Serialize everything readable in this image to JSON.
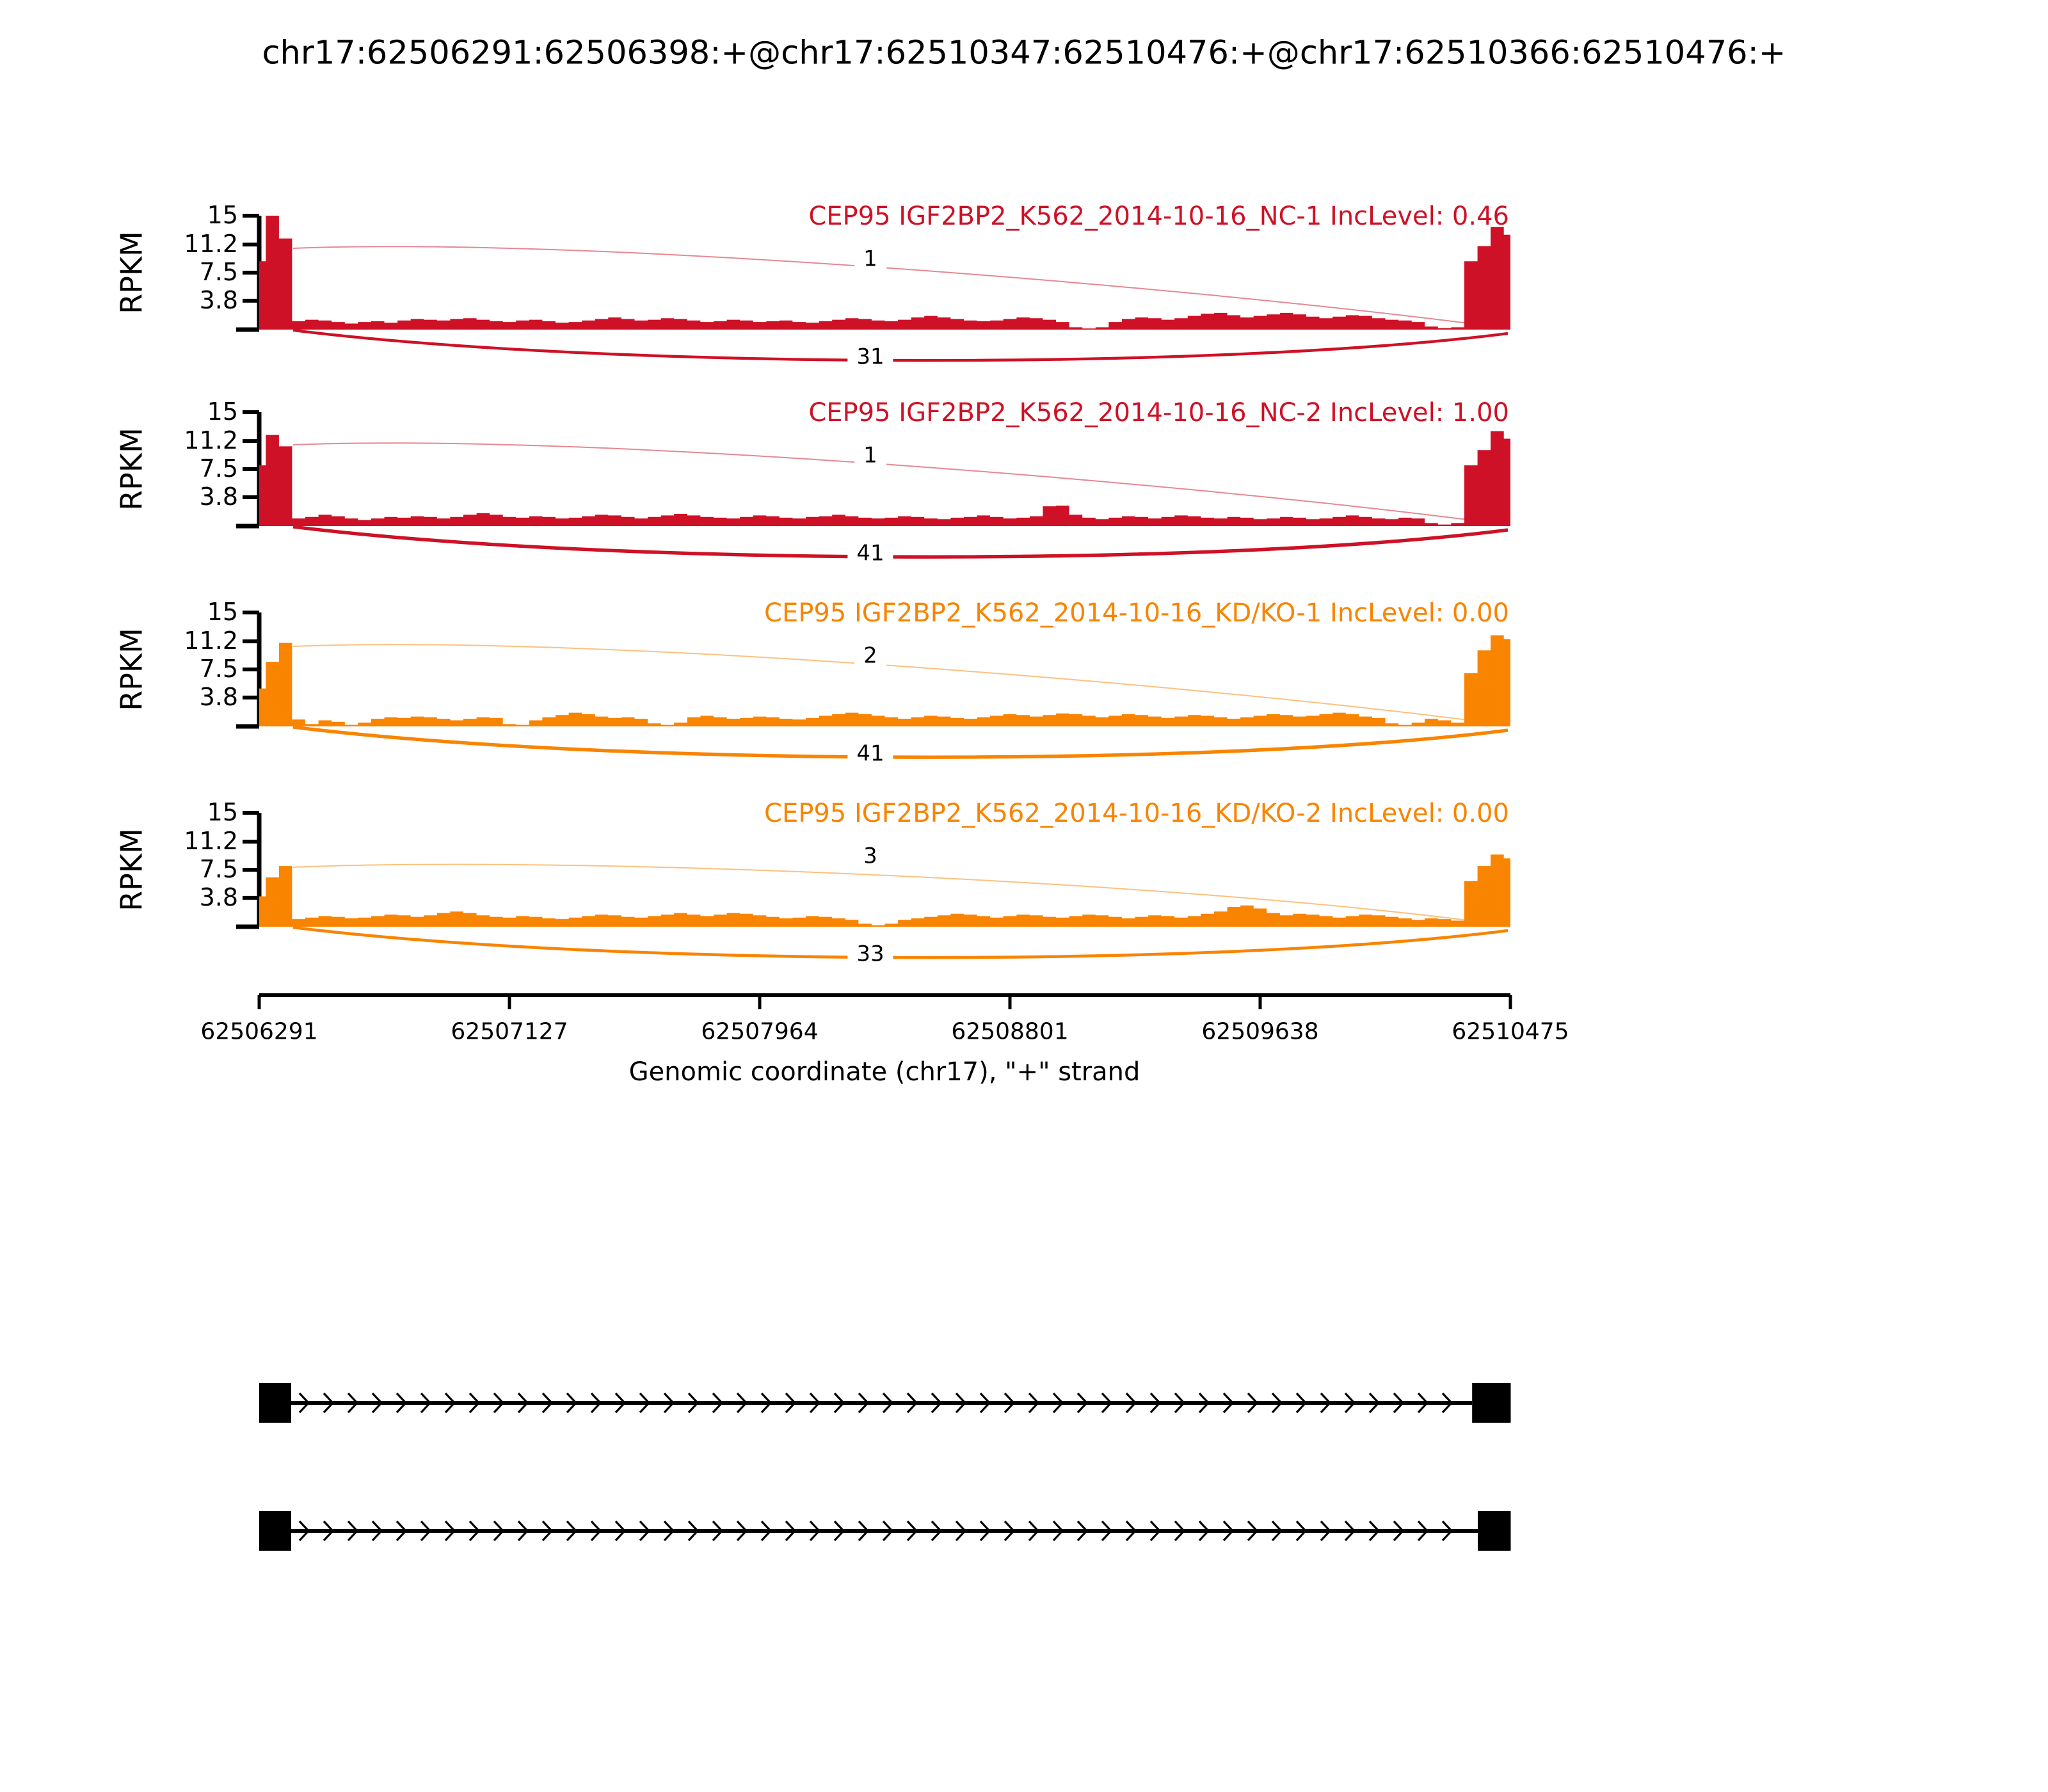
{
  "title": "chr17:62506291:62506398:+@chr17:62510347:62510476:+@chr17:62510366:62510476:+",
  "colors": {
    "red": "#CE1126",
    "orange": "#F98400",
    "axis_black": "#000000"
  },
  "axis": {
    "y_label": "RPKM",
    "y_ticks": [
      "15",
      "11.2",
      "7.5",
      "3.8"
    ],
    "x_label": "Genomic coordinate (chr17), \"+\" strand",
    "x_ticks": [
      "62506291",
      "62507127",
      "62507964",
      "62508801",
      "62509638",
      "62510475"
    ]
  },
  "chart_data": {
    "type": "area",
    "subtype": "sashimi-plot",
    "x_range": [
      62506291,
      62510475
    ],
    "y_max_rpkm": 15,
    "y_tick_values": [
      15,
      11.2,
      7.5,
      3.8
    ],
    "tracks": [
      {
        "label": "CEP95 IGF2BP2_K562_2014-10-16_NC-1 IncLevel: 0.46",
        "sample": "NC-1",
        "inc_level": 0.46,
        "color": "#CE1126",
        "junction_counts": {
          "upper_arc": 1,
          "lower_arc": 31
        },
        "coverage_rpkm": [
          9,
          15,
          12,
          1.1,
          1.3,
          1.2,
          1.0,
          0.8,
          1.0,
          1.1,
          0.9,
          1.2,
          1.4,
          1.3,
          1.2,
          1.4,
          1.5,
          1.3,
          1.1,
          1.0,
          1.2,
          1.3,
          1.1,
          0.9,
          1.0,
          1.2,
          1.4,
          1.6,
          1.4,
          1.2,
          1.3,
          1.5,
          1.4,
          1.2,
          1.0,
          1.1,
          1.3,
          1.2,
          1.0,
          1.1,
          1.2,
          1.0,
          0.9,
          1.1,
          1.3,
          1.5,
          1.4,
          1.2,
          1.1,
          1.3,
          1.6,
          1.8,
          1.6,
          1.4,
          1.2,
          1.1,
          1.2,
          1.4,
          1.6,
          1.5,
          1.3,
          1.0,
          0.3,
          0.15,
          0.3,
          1.0,
          1.4,
          1.6,
          1.5,
          1.3,
          1.5,
          1.8,
          2.1,
          2.2,
          1.9,
          1.6,
          1.8,
          2.0,
          2.2,
          2.0,
          1.7,
          1.5,
          1.7,
          1.9,
          1.8,
          1.5,
          1.3,
          1.2,
          1.0,
          0.4,
          0.2,
          0.3,
          9,
          11,
          13.5,
          12.5
        ]
      },
      {
        "label": "CEP95 IGF2BP2_K562_2014-10-16_NC-2 IncLevel: 1.00",
        "sample": "NC-2",
        "inc_level": 1.0,
        "color": "#CE1126",
        "junction_counts": {
          "upper_arc": 1,
          "lower_arc": 41
        },
        "coverage_rpkm": [
          8,
          12,
          10.5,
          1.0,
          1.2,
          1.5,
          1.3,
          1.0,
          0.8,
          1.0,
          1.2,
          1.1,
          1.3,
          1.2,
          1.0,
          1.2,
          1.5,
          1.7,
          1.5,
          1.2,
          1.1,
          1.3,
          1.2,
          1.0,
          1.1,
          1.3,
          1.5,
          1.4,
          1.2,
          1.0,
          1.2,
          1.4,
          1.6,
          1.4,
          1.2,
          1.1,
          1.0,
          1.2,
          1.4,
          1.3,
          1.1,
          1.0,
          1.2,
          1.3,
          1.5,
          1.3,
          1.1,
          1.0,
          1.1,
          1.3,
          1.2,
          1.0,
          0.9,
          1.1,
          1.2,
          1.4,
          1.2,
          1.0,
          1.1,
          1.3,
          2.6,
          2.7,
          1.5,
          1.1,
          0.9,
          1.1,
          1.3,
          1.2,
          1.0,
          1.2,
          1.4,
          1.3,
          1.1,
          1.0,
          1.2,
          1.1,
          0.9,
          1.0,
          1.2,
          1.1,
          0.9,
          1.0,
          1.2,
          1.4,
          1.2,
          1.0,
          0.9,
          1.1,
          1.0,
          0.4,
          0.2,
          0.4,
          8,
          10,
          12.5,
          11.5
        ]
      },
      {
        "label": "CEP95 IGF2BP2_K562_2014-10-16_KD/KO-1 IncLevel: 0.00",
        "sample": "KD/KO-1",
        "inc_level": 0.0,
        "color": "#F98400",
        "junction_counts": {
          "upper_arc": 2,
          "lower_arc": 41
        },
        "coverage_rpkm": [
          5,
          8.5,
          11,
          0.9,
          0.3,
          0.8,
          0.6,
          0.2,
          0.5,
          1.0,
          1.2,
          1.1,
          1.3,
          1.2,
          1.0,
          0.8,
          1.0,
          1.2,
          1.1,
          0.3,
          0.2,
          0.8,
          1.2,
          1.5,
          1.8,
          1.6,
          1.3,
          1.1,
          1.2,
          1.0,
          0.4,
          0.2,
          0.5,
          1.2,
          1.4,
          1.2,
          1.0,
          1.1,
          1.3,
          1.2,
          1.0,
          0.9,
          1.1,
          1.4,
          1.6,
          1.8,
          1.6,
          1.4,
          1.2,
          1.0,
          1.2,
          1.4,
          1.3,
          1.1,
          1.0,
          1.2,
          1.4,
          1.6,
          1.5,
          1.3,
          1.5,
          1.7,
          1.6,
          1.4,
          1.2,
          1.4,
          1.6,
          1.5,
          1.3,
          1.1,
          1.3,
          1.5,
          1.4,
          1.2,
          1.0,
          1.2,
          1.4,
          1.6,
          1.5,
          1.3,
          1.4,
          1.6,
          1.8,
          1.6,
          1.3,
          1.1,
          0.4,
          0.2,
          0.5,
          1.0,
          0.8,
          0.5,
          7,
          10,
          12,
          11.5
        ]
      },
      {
        "label": "CEP95 IGF2BP2_K562_2014-10-16_KD/KO-2 IncLevel: 0.00",
        "sample": "KD/KO-2",
        "inc_level": 0.0,
        "color": "#F98400",
        "junction_counts": {
          "upper_arc": 3,
          "lower_arc": 33
        },
        "coverage_rpkm": [
          4,
          6.5,
          8,
          1.0,
          1.2,
          1.4,
          1.3,
          1.1,
          1.2,
          1.4,
          1.6,
          1.5,
          1.3,
          1.5,
          1.8,
          2.0,
          1.8,
          1.5,
          1.3,
          1.2,
          1.4,
          1.3,
          1.1,
          1.0,
          1.2,
          1.4,
          1.6,
          1.5,
          1.3,
          1.2,
          1.4,
          1.6,
          1.8,
          1.6,
          1.4,
          1.6,
          1.8,
          1.7,
          1.5,
          1.3,
          1.1,
          1.2,
          1.4,
          1.3,
          1.1,
          0.9,
          0.4,
          0.2,
          0.4,
          0.9,
          1.1,
          1.3,
          1.5,
          1.7,
          1.6,
          1.4,
          1.2,
          1.4,
          1.6,
          1.5,
          1.3,
          1.2,
          1.4,
          1.6,
          1.5,
          1.3,
          1.1,
          1.3,
          1.5,
          1.4,
          1.2,
          1.4,
          1.7,
          2.0,
          2.6,
          2.8,
          2.4,
          1.8,
          1.5,
          1.7,
          1.6,
          1.4,
          1.2,
          1.4,
          1.6,
          1.5,
          1.3,
          1.1,
          0.9,
          1.1,
          1.0,
          0.8,
          6,
          8,
          9.5,
          9
        ]
      }
    ],
    "transcripts": [
      {
        "strand": "+",
        "exons": [
          [
            62506291,
            62506398
          ],
          [
            62510347,
            62510476
          ]
        ]
      },
      {
        "strand": "+",
        "exons": [
          [
            62506291,
            62506398
          ],
          [
            62510366,
            62510476
          ]
        ]
      }
    ]
  }
}
